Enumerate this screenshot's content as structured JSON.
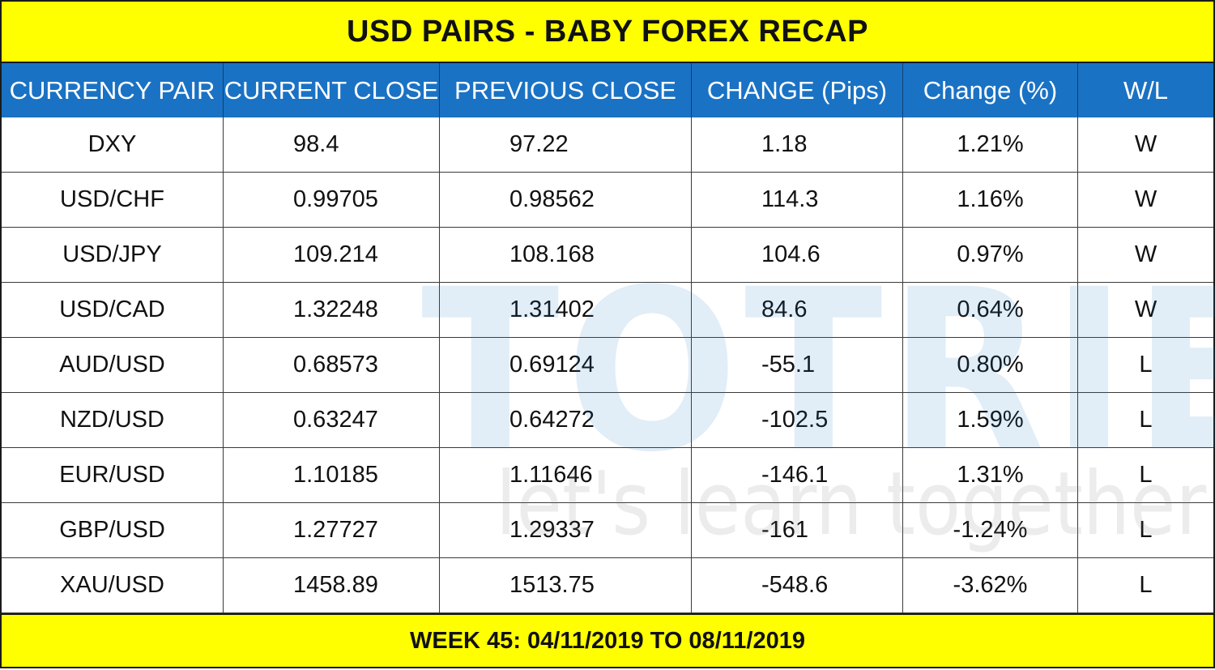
{
  "title": "USD PAIRS - BABY FOREX RECAP",
  "columns": [
    "CURRENCY PAIR",
    "CURRENT CLOSE",
    "PREVIOUS CLOSE",
    "CHANGE (Pips)",
    "Change (%)",
    "W/L"
  ],
  "rows": [
    {
      "pair": "DXY",
      "current": "98.4",
      "previous": "97.22",
      "pips": "1.18",
      "pct": "1.21%",
      "wl": "W"
    },
    {
      "pair": "USD/CHF",
      "current": "0.99705",
      "previous": "0.98562",
      "pips": "114.3",
      "pct": "1.16%",
      "wl": "W"
    },
    {
      "pair": "USD/JPY",
      "current": "109.214",
      "previous": "108.168",
      "pips": "104.6",
      "pct": "0.97%",
      "wl": "W"
    },
    {
      "pair": "USD/CAD",
      "current": "1.32248",
      "previous": "1.31402",
      "pips": "84.6",
      "pct": "0.64%",
      "wl": "W"
    },
    {
      "pair": "AUD/USD",
      "current": "0.68573",
      "previous": "0.69124",
      "pips": "-55.1",
      "pct": "0.80%",
      "wl": "L"
    },
    {
      "pair": "NZD/USD",
      "current": "0.63247",
      "previous": "0.64272",
      "pips": "-102.5",
      "pct": "1.59%",
      "wl": "L"
    },
    {
      "pair": "EUR/USD",
      "current": "1.10185",
      "previous": "1.11646",
      "pips": "-146.1",
      "pct": "1.31%",
      "wl": "L"
    },
    {
      "pair": "GBP/USD",
      "current": "1.27727",
      "previous": "1.29337",
      "pips": "-161",
      "pct": "-1.24%",
      "wl": "L"
    },
    {
      "pair": "XAU/USD",
      "current": "1458.89",
      "previous": "1513.75",
      "pips": "-548.6",
      "pct": "-3.62%",
      "wl": "L"
    }
  ],
  "footer": "WEEK 45: 04/11/2019 TO 08/11/2019",
  "watermark": {
    "brand": "TOTRIEU",
    "slogan": "let's learn together"
  },
  "colors": {
    "title_bg": "#ffff00",
    "header_bg": "#1a72c4",
    "header_text": "#ffffff",
    "watermark": "#1a72c4"
  }
}
